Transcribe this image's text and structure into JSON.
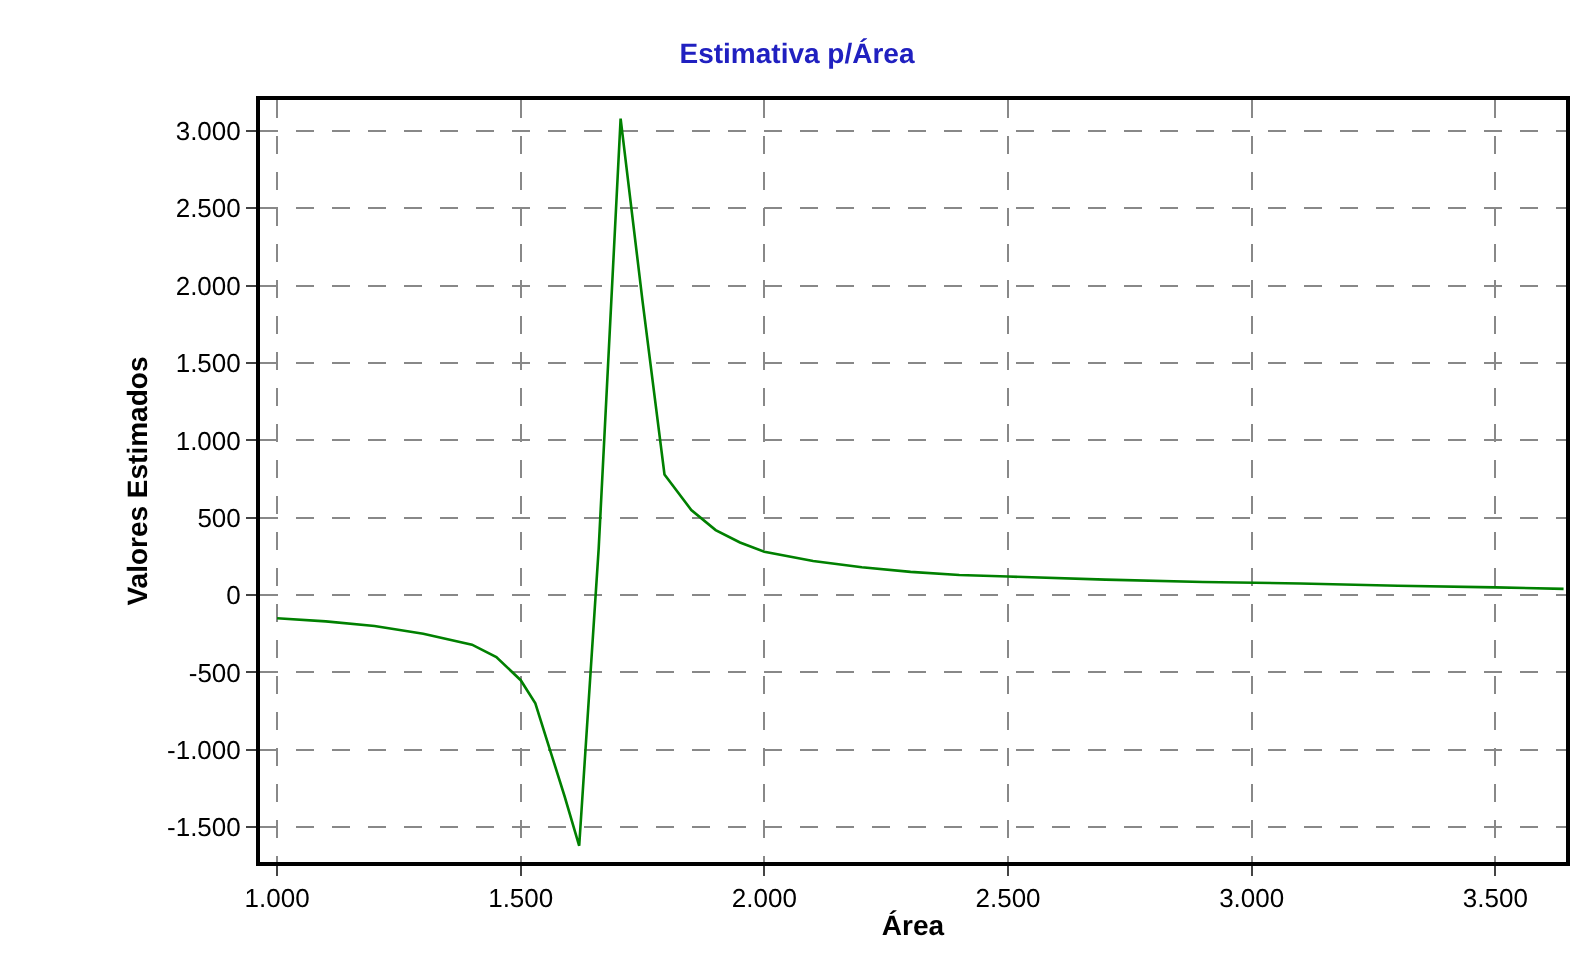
{
  "chart_data": {
    "type": "line",
    "title": "Estimativa p/Área",
    "xlabel": "Área",
    "ylabel": "Valores Estimados",
    "x": [
      1000,
      1100,
      1200,
      1300,
      1400,
      1450,
      1500,
      1530,
      1560,
      1590,
      1620,
      1660,
      1705,
      1750,
      1795,
      1850,
      1900,
      1950,
      2000,
      2100,
      2200,
      2300,
      2400,
      2500,
      2700,
      2900,
      3100,
      3300,
      3500,
      3640
    ],
    "series": [
      {
        "color": "#008000",
        "values": [
          -150,
          -170,
          -200,
          -250,
          -320,
          -400,
          -550,
          -700,
          -1000,
          -1300,
          -1620,
          300,
          3080,
          1900,
          780,
          550,
          420,
          340,
          280,
          220,
          180,
          150,
          130,
          120,
          100,
          85,
          75,
          60,
          50,
          40
        ]
      }
    ],
    "xlim": [
      965,
      3645
    ],
    "ylim": [
      -1725,
      3200
    ],
    "xticks": [
      {
        "value": 1000,
        "label": "1.000"
      },
      {
        "value": 1500,
        "label": "1.500"
      },
      {
        "value": 2000,
        "label": "2.000"
      },
      {
        "value": 2500,
        "label": "2.500"
      },
      {
        "value": 3000,
        "label": "3.000"
      },
      {
        "value": 3500,
        "label": "3.500"
      }
    ],
    "yticks": [
      {
        "value": -1500,
        "label": "-1.500"
      },
      {
        "value": -1000,
        "label": "-1.000"
      },
      {
        "value": -500,
        "label": "-500"
      },
      0,
      500,
      {
        "value": 1000,
        "label": "1.000"
      },
      {
        "value": 1500,
        "label": "1.500"
      },
      {
        "value": 2000,
        "label": "2.000"
      },
      {
        "value": 2500,
        "label": "2.500"
      },
      {
        "value": 3000,
        "label": "3.000"
      }
    ],
    "grid": true,
    "legend": false,
    "marker": "none",
    "line_style": "solid"
  }
}
